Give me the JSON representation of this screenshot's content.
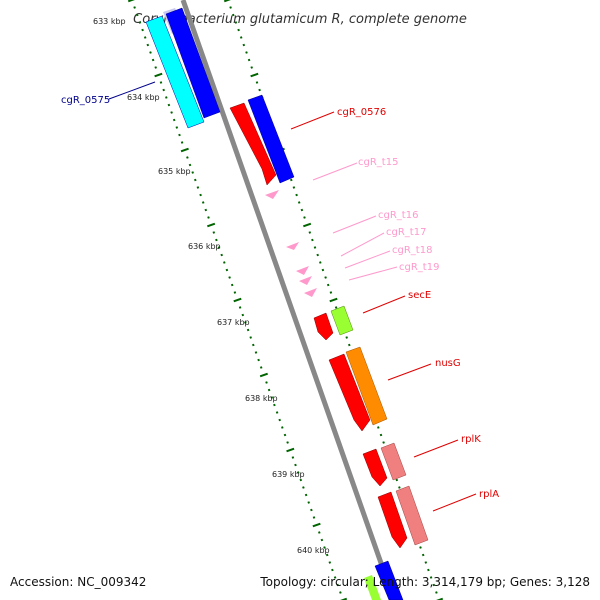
{
  "title": "Corynebacterium glutamicum R, complete genome",
  "footer": {
    "accession": "Accession: NC_009342",
    "topology": "Topology: circular; Length: 3,314,179 bp; Genes: 3,128"
  },
  "kbp_labels": [
    "633 kbp",
    "634 kbp",
    "635 kbp",
    "636 kbp",
    "637 kbp",
    "638 kbp",
    "639 kbp",
    "640 kbp"
  ],
  "features": [
    {
      "label": "cgR_0575",
      "color": "#00008b"
    },
    {
      "label": "cgR_0576",
      "color": "#e00000"
    },
    {
      "label": "cgR_t15",
      "color": "#ff99cc"
    },
    {
      "label": "cgR_t16",
      "color": "#ff99cc"
    },
    {
      "label": "cgR_t17",
      "color": "#ff99cc"
    },
    {
      "label": "cgR_t18",
      "color": "#ff99cc"
    },
    {
      "label": "cgR_t19",
      "color": "#ff99cc"
    },
    {
      "label": "secE",
      "color": "#e00000"
    },
    {
      "label": "nusG",
      "color": "#e00000"
    },
    {
      "label": "rplK",
      "color": "#e00000"
    },
    {
      "label": "rplA",
      "color": "#e00000"
    }
  ],
  "colors": {
    "backbone": "#888888",
    "ticks": "#006400",
    "cds_red": "#ff0000",
    "cds_blue": "#0000ff",
    "cds_cyan": "#00ffff",
    "cds_orange": "#ff8c00",
    "cds_green": "#99ff33",
    "cds_salmon": "#f08080",
    "trna_pink": "#ffaad4"
  }
}
